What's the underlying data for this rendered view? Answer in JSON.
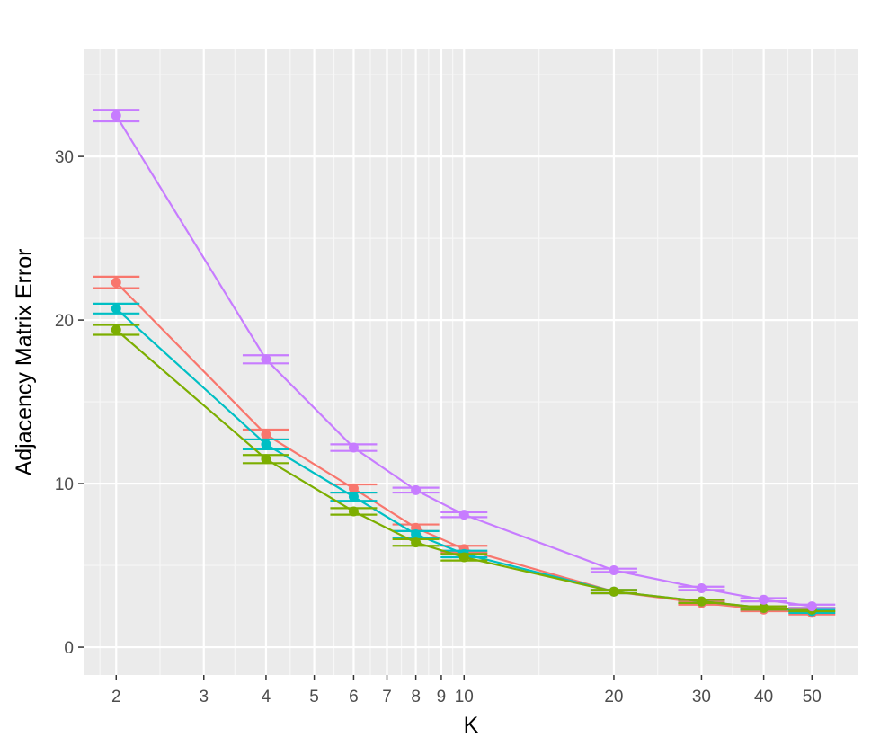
{
  "chart_data": {
    "type": "line",
    "title": "",
    "xlabel": "K",
    "ylabel": "Adjacency Matrix Error",
    "x_scale": "log",
    "xlim": [
      1.72,
      62
    ],
    "ylim": [
      -1.7,
      36.6
    ],
    "x_ticks": [
      2,
      3,
      4,
      5,
      6,
      7,
      8,
      9,
      10,
      20,
      30,
      40,
      50
    ],
    "x_tick_labels": [
      "2",
      "3",
      "4",
      "5",
      "6",
      "7",
      "8",
      "9",
      "10",
      "20",
      "30",
      "40",
      "50"
    ],
    "y_ticks": [
      0,
      10,
      20,
      30
    ],
    "y_tick_labels": [
      "0",
      "10",
      "20",
      "30"
    ],
    "x": [
      2,
      4,
      6,
      8,
      10,
      20,
      30,
      40,
      50
    ],
    "grid": true,
    "legend": "none",
    "error_bars": true,
    "series": [
      {
        "color": "#F8766D",
        "values": [
          22.3,
          13.0,
          9.7,
          7.3,
          6.0,
          3.4,
          2.7,
          2.3,
          2.1
        ],
        "err": [
          0.35,
          0.3,
          0.25,
          0.2,
          0.2,
          0.1,
          0.1,
          0.1,
          0.1
        ]
      },
      {
        "color": "#00BFC4",
        "values": [
          20.7,
          12.4,
          9.2,
          6.9,
          5.7,
          3.4,
          2.8,
          2.4,
          2.2
        ],
        "err": [
          0.3,
          0.3,
          0.25,
          0.2,
          0.2,
          0.1,
          0.1,
          0.1,
          0.1
        ]
      },
      {
        "color": "#7CAE00",
        "values": [
          19.4,
          11.5,
          8.3,
          6.4,
          5.5,
          3.4,
          2.8,
          2.4,
          2.3
        ],
        "err": [
          0.3,
          0.25,
          0.2,
          0.2,
          0.2,
          0.1,
          0.1,
          0.1,
          0.1
        ]
      },
      {
        "color": "#C77CFF",
        "values": [
          32.5,
          17.6,
          12.2,
          9.6,
          8.1,
          4.7,
          3.6,
          2.9,
          2.5
        ],
        "err": [
          0.35,
          0.25,
          0.2,
          0.15,
          0.15,
          0.1,
          0.1,
          0.1,
          0.1
        ]
      }
    ]
  }
}
